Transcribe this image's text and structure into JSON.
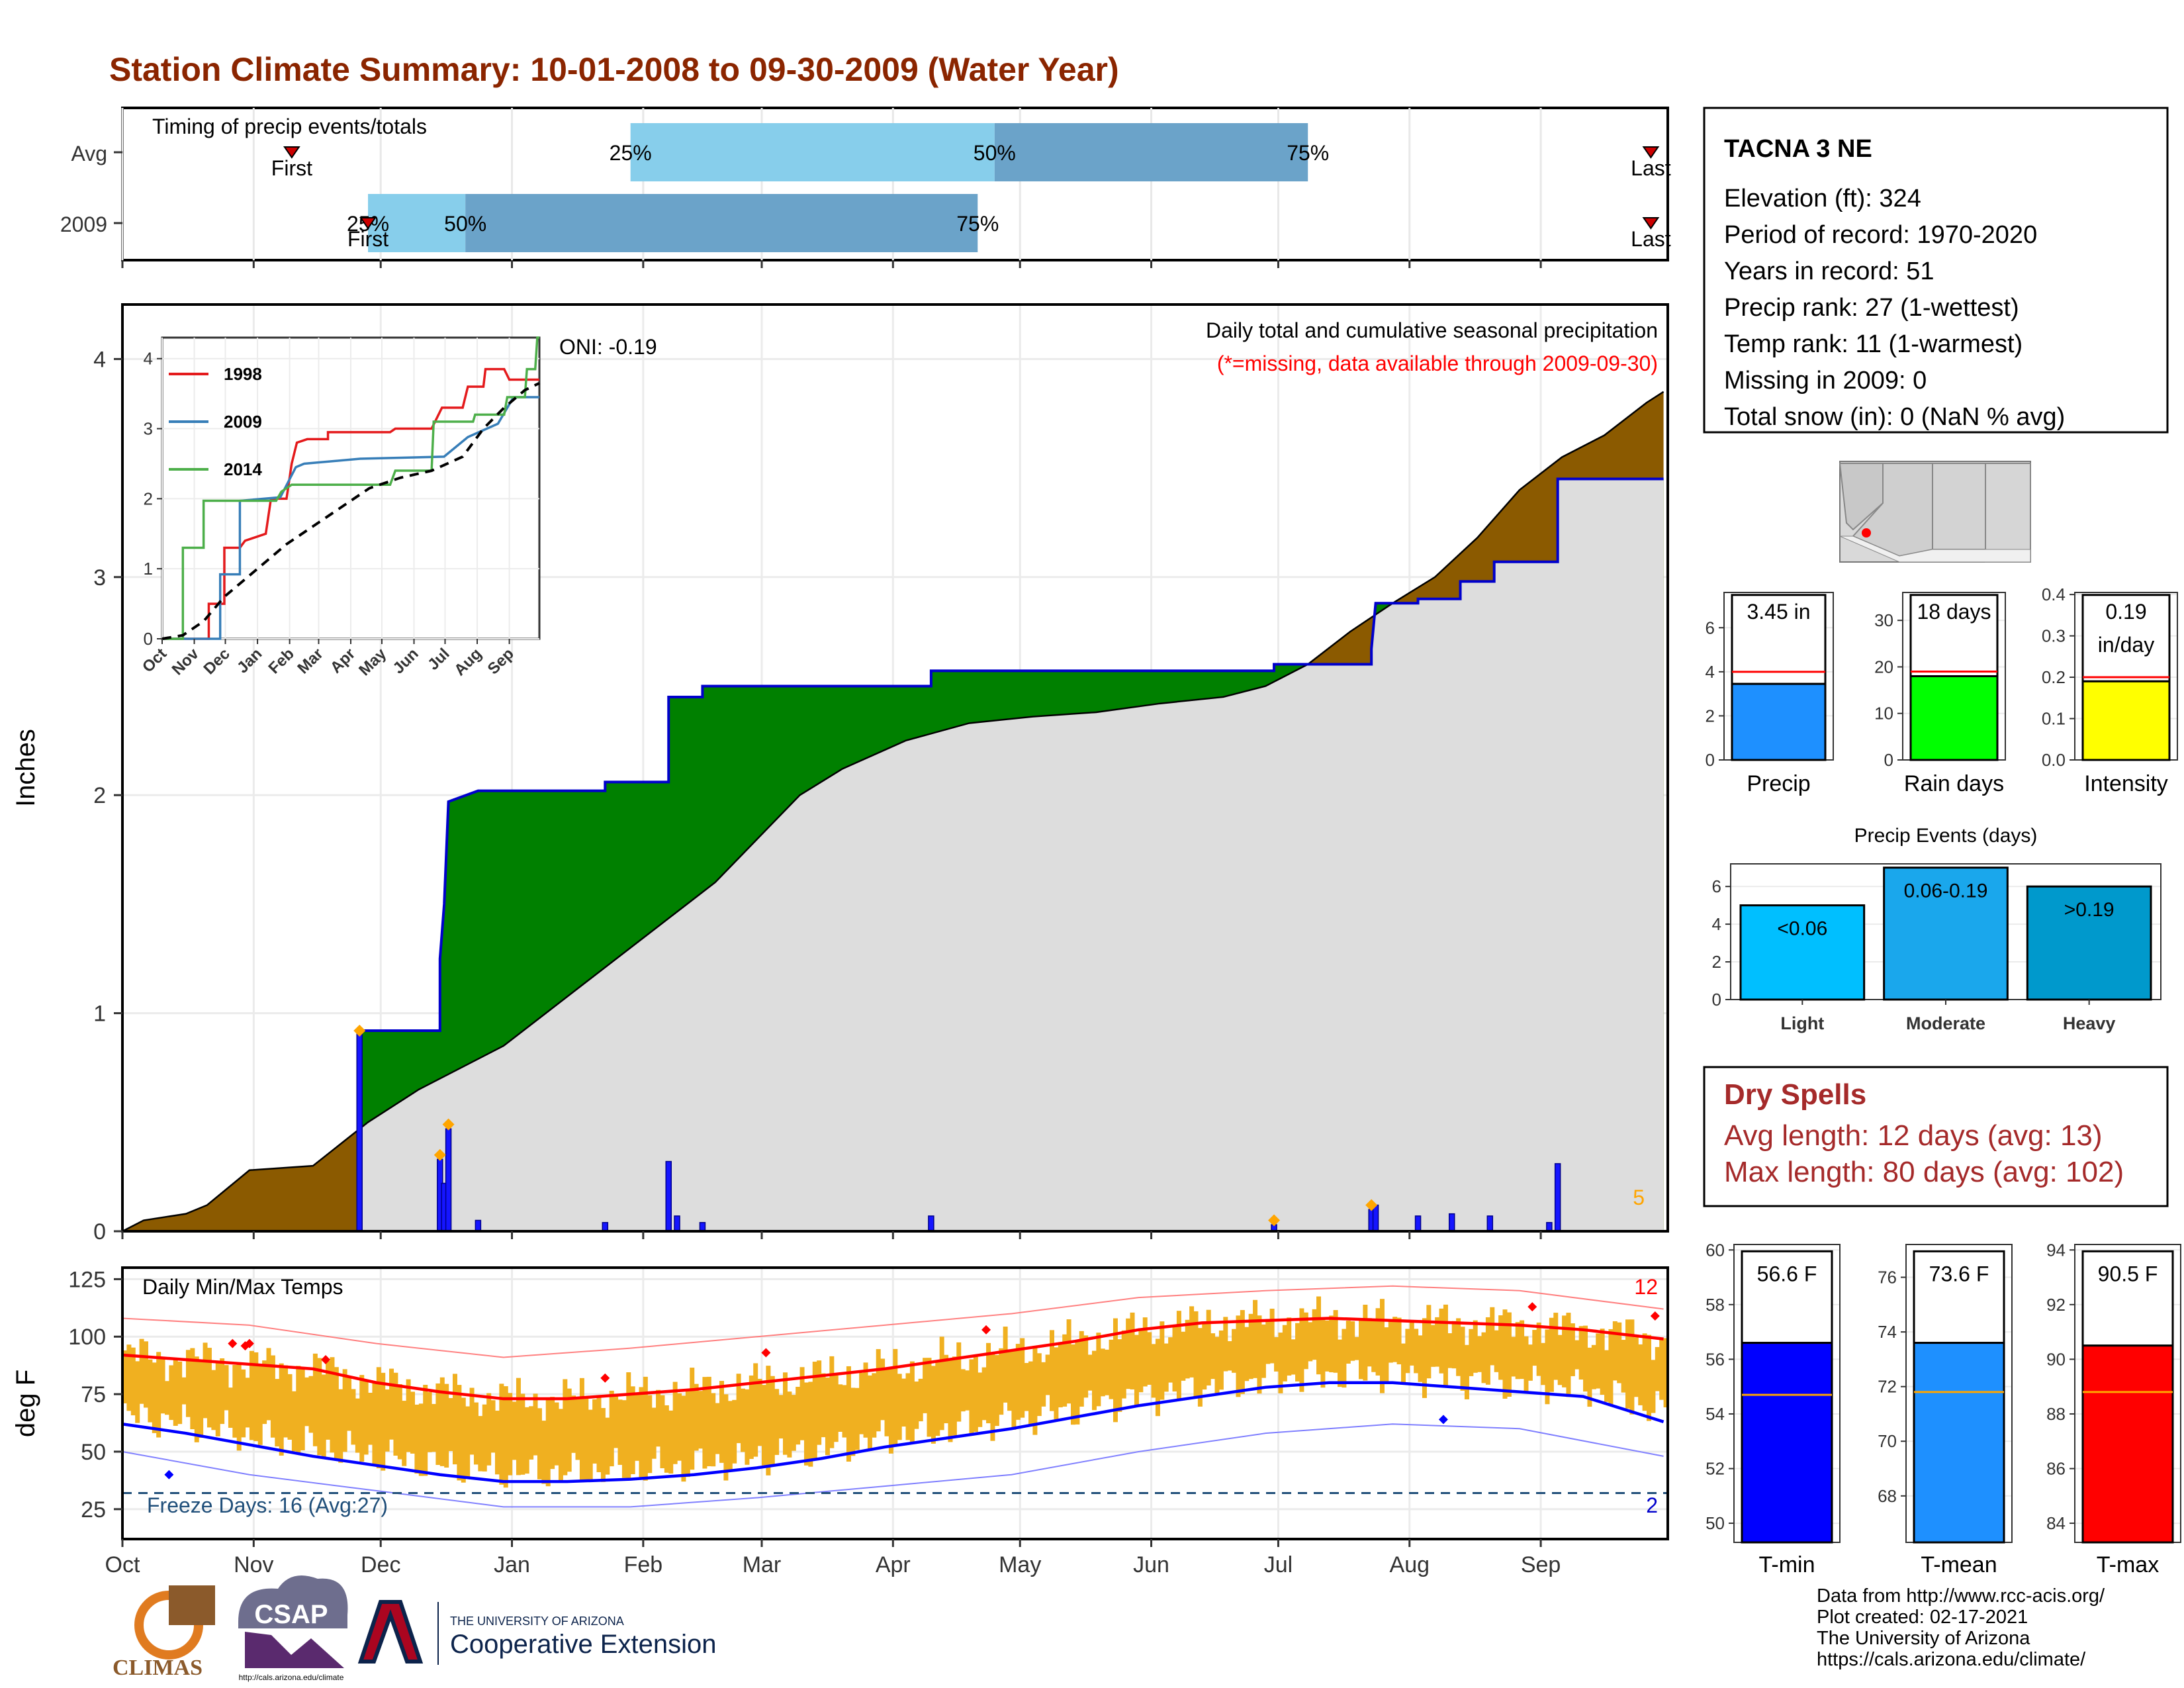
{
  "title": "Station Climate Summary: 10-01-2008 to 09-30-2009 (Water Year)",
  "colors": {
    "title": "#8B2500",
    "light_blue": "#87CEEB",
    "mid_blue": "#6BA3C9",
    "brown": "#8B5A00",
    "green": "#008000",
    "grey_fill": "#DDDDDD",
    "bar_blue": "#1515FF",
    "orange": "#FFA500",
    "red": "#FF0000",
    "temp_band": "#F0B020",
    "dry_red": "#A52A2A"
  },
  "months": [
    "Oct",
    "Nov",
    "Dec",
    "Jan",
    "Feb",
    "Mar",
    "Apr",
    "May",
    "Jun",
    "Jul",
    "Aug",
    "Sep"
  ],
  "timing": {
    "label": "Timing of precip events/totals",
    "rows": [
      "Avg",
      "2009"
    ],
    "first_label": "First",
    "last_label": "Last",
    "p25": "25%",
    "p50": "50%",
    "p75": "75%",
    "avg": {
      "first_day": 40,
      "p25_day": 120,
      "p50_day": 206,
      "p75_day": 280,
      "last_day": 361
    },
    "y2009": {
      "first_day": 58,
      "p25_day": 58,
      "p50_day": 81,
      "p75_day": 202,
      "last_day": 361
    }
  },
  "precip_main": {
    "type": "area",
    "ylabel": "Inches",
    "yticks": [
      0,
      1,
      2,
      3,
      4
    ],
    "ylim": [
      0,
      4.25
    ],
    "header_text": "Daily total and cumulative seasonal precipitation",
    "missing_text": "(*=missing, data available through 2009-09-30)",
    "oni_text": "ONI: -0.19",
    "corner_count": "5",
    "avg_cumulative": [
      [
        0,
        0
      ],
      [
        5,
        0.05
      ],
      [
        15,
        0.08
      ],
      [
        20,
        0.12
      ],
      [
        25,
        0.2
      ],
      [
        30,
        0.28
      ],
      [
        45,
        0.3
      ],
      [
        58,
        0.5
      ],
      [
        70,
        0.65
      ],
      [
        80,
        0.75
      ],
      [
        90,
        0.85
      ],
      [
        100,
        1.0
      ],
      [
        110,
        1.15
      ],
      [
        120,
        1.3
      ],
      [
        130,
        1.45
      ],
      [
        140,
        1.6
      ],
      [
        150,
        1.8
      ],
      [
        160,
        2.0
      ],
      [
        170,
        2.12
      ],
      [
        185,
        2.25
      ],
      [
        200,
        2.33
      ],
      [
        215,
        2.36
      ],
      [
        230,
        2.38
      ],
      [
        245,
        2.42
      ],
      [
        260,
        2.45
      ],
      [
        270,
        2.5
      ],
      [
        280,
        2.6
      ],
      [
        290,
        2.75
      ],
      [
        300,
        2.88
      ],
      [
        310,
        3.0
      ],
      [
        320,
        3.18
      ],
      [
        330,
        3.4
      ],
      [
        340,
        3.55
      ],
      [
        350,
        3.65
      ],
      [
        360,
        3.8
      ],
      [
        364,
        3.85
      ]
    ],
    "y2009_cumulative": [
      [
        0,
        0
      ],
      [
        56,
        0
      ],
      [
        56,
        0.92
      ],
      [
        75,
        0.92
      ],
      [
        75,
        1.25
      ],
      [
        76,
        1.5
      ],
      [
        77,
        1.97
      ],
      [
        84,
        2.02
      ],
      [
        114,
        2.02
      ],
      [
        114,
        2.06
      ],
      [
        129,
        2.06
      ],
      [
        129,
        2.45
      ],
      [
        137,
        2.45
      ],
      [
        137,
        2.5
      ],
      [
        191,
        2.5
      ],
      [
        191,
        2.57
      ],
      [
        272,
        2.57
      ],
      [
        272,
        2.6
      ],
      [
        295,
        2.6
      ],
      [
        295,
        2.67
      ],
      [
        296,
        2.88
      ],
      [
        306,
        2.88
      ],
      [
        306,
        2.9
      ],
      [
        316,
        2.9
      ],
      [
        316,
        2.98
      ],
      [
        324,
        2.98
      ],
      [
        324,
        3.07
      ],
      [
        339,
        3.07
      ],
      [
        339,
        3.45
      ],
      [
        364,
        3.45
      ]
    ],
    "daily_bars": [
      [
        56,
        0.92
      ],
      [
        75,
        0.33
      ],
      [
        76,
        0.22
      ],
      [
        77,
        0.47
      ],
      [
        84,
        0.05
      ],
      [
        114,
        0.04
      ],
      [
        129,
        0.32
      ],
      [
        131,
        0.07
      ],
      [
        137,
        0.04
      ],
      [
        191,
        0.07
      ],
      [
        272,
        0.03
      ],
      [
        295,
        0.1
      ],
      [
        296,
        0.12
      ],
      [
        306,
        0.07
      ],
      [
        314,
        0.08
      ],
      [
        323,
        0.07
      ],
      [
        337,
        0.04
      ],
      [
        339,
        0.31
      ]
    ],
    "markers": [
      [
        56,
        0.92
      ],
      [
        75,
        0.35
      ],
      [
        77,
        0.49
      ],
      [
        272,
        0.05
      ],
      [
        295,
        0.12
      ]
    ]
  },
  "inset": {
    "yticks": [
      0,
      1,
      2,
      3,
      4
    ],
    "ylim": [
      0,
      4.3
    ],
    "legend": [
      {
        "name": "1998",
        "color": "#E41A1C"
      },
      {
        "name": "2009",
        "color": "#377EB8"
      },
      {
        "name": "2014",
        "color": "#4DAF4A"
      }
    ],
    "series_1998": [
      [
        0,
        0
      ],
      [
        45,
        0
      ],
      [
        45,
        0.5
      ],
      [
        60,
        0.5
      ],
      [
        60,
        1.3
      ],
      [
        75,
        1.3
      ],
      [
        80,
        1.4
      ],
      [
        100,
        1.5
      ],
      [
        105,
        2.0
      ],
      [
        120,
        2.0
      ],
      [
        125,
        2.5
      ],
      [
        130,
        2.8
      ],
      [
        140,
        2.85
      ],
      [
        160,
        2.85
      ],
      [
        160,
        2.95
      ],
      [
        220,
        2.95
      ],
      [
        225,
        3.0
      ],
      [
        260,
        3.0
      ],
      [
        270,
        3.3
      ],
      [
        290,
        3.3
      ],
      [
        295,
        3.6
      ],
      [
        310,
        3.6
      ],
      [
        312,
        3.85
      ],
      [
        330,
        3.85
      ],
      [
        335,
        3.7
      ],
      [
        364,
        3.7
      ]
    ],
    "series_2009": [
      [
        0,
        0
      ],
      [
        56,
        0
      ],
      [
        56,
        0.92
      ],
      [
        75,
        0.92
      ],
      [
        75,
        1.97
      ],
      [
        114,
        2.02
      ],
      [
        129,
        2.45
      ],
      [
        137,
        2.5
      ],
      [
        191,
        2.57
      ],
      [
        272,
        2.6
      ],
      [
        295,
        2.88
      ],
      [
        324,
        3.07
      ],
      [
        339,
        3.45
      ],
      [
        364,
        3.45
      ]
    ],
    "series_2014": [
      [
        0,
        0
      ],
      [
        20,
        0
      ],
      [
        20,
        1.3
      ],
      [
        40,
        1.3
      ],
      [
        40,
        1.97
      ],
      [
        110,
        1.97
      ],
      [
        115,
        2.1
      ],
      [
        125,
        2.2
      ],
      [
        220,
        2.2
      ],
      [
        225,
        2.4
      ],
      [
        260,
        2.4
      ],
      [
        262,
        3.1
      ],
      [
        300,
        3.1
      ],
      [
        302,
        3.2
      ],
      [
        330,
        3.2
      ],
      [
        333,
        3.45
      ],
      [
        350,
        3.45
      ],
      [
        352,
        3.85
      ],
      [
        360,
        3.85
      ],
      [
        362,
        4.3
      ],
      [
        364,
        4.3
      ]
    ],
    "avg": [
      [
        0,
        0
      ],
      [
        20,
        0.05
      ],
      [
        40,
        0.25
      ],
      [
        60,
        0.6
      ],
      [
        80,
        0.85
      ],
      [
        100,
        1.1
      ],
      [
        120,
        1.35
      ],
      [
        140,
        1.55
      ],
      [
        160,
        1.75
      ],
      [
        180,
        1.95
      ],
      [
        200,
        2.15
      ],
      [
        230,
        2.3
      ],
      [
        260,
        2.4
      ],
      [
        290,
        2.6
      ],
      [
        310,
        3.0
      ],
      [
        330,
        3.3
      ],
      [
        350,
        3.55
      ],
      [
        364,
        3.65
      ]
    ]
  },
  "temps": {
    "ylabel": "deg F",
    "title": "Daily Min/Max Temps",
    "yticks": [
      25,
      50,
      75,
      100,
      125
    ],
    "ylim": [
      12,
      130
    ],
    "freeze_line": 32,
    "freeze_text": "Freeze Days: 16 (Avg:27)",
    "count_hi": "12",
    "count_lo": "2",
    "avg_max": [
      [
        0,
        92
      ],
      [
        15,
        90
      ],
      [
        30,
        88
      ],
      [
        45,
        86
      ],
      [
        60,
        80
      ],
      [
        75,
        76
      ],
      [
        90,
        73
      ],
      [
        105,
        73
      ],
      [
        120,
        75
      ],
      [
        135,
        77
      ],
      [
        150,
        80
      ],
      [
        165,
        83
      ],
      [
        180,
        86
      ],
      [
        195,
        90
      ],
      [
        210,
        94
      ],
      [
        225,
        98
      ],
      [
        240,
        103
      ],
      [
        255,
        106
      ],
      [
        270,
        107
      ],
      [
        285,
        108
      ],
      [
        300,
        107
      ],
      [
        315,
        106
      ],
      [
        330,
        105
      ],
      [
        345,
        103
      ],
      [
        364,
        99
      ]
    ],
    "avg_min": [
      [
        0,
        62
      ],
      [
        15,
        58
      ],
      [
        30,
        53
      ],
      [
        45,
        48
      ],
      [
        60,
        44
      ],
      [
        75,
        40
      ],
      [
        90,
        37
      ],
      [
        105,
        37
      ],
      [
        120,
        38
      ],
      [
        135,
        40
      ],
      [
        150,
        43
      ],
      [
        165,
        47
      ],
      [
        180,
        52
      ],
      [
        195,
        56
      ],
      [
        210,
        60
      ],
      [
        225,
        65
      ],
      [
        240,
        70
      ],
      [
        255,
        74
      ],
      [
        270,
        78
      ],
      [
        285,
        80
      ],
      [
        300,
        80
      ],
      [
        315,
        78
      ],
      [
        330,
        76
      ],
      [
        345,
        74
      ],
      [
        364,
        63
      ]
    ],
    "rec_max": [
      [
        0,
        108
      ],
      [
        30,
        105
      ],
      [
        60,
        97
      ],
      [
        90,
        91
      ],
      [
        120,
        95
      ],
      [
        150,
        100
      ],
      [
        180,
        105
      ],
      [
        210,
        110
      ],
      [
        240,
        117
      ],
      [
        270,
        120
      ],
      [
        300,
        122
      ],
      [
        330,
        120
      ],
      [
        364,
        112
      ]
    ],
    "rec_min": [
      [
        0,
        50
      ],
      [
        30,
        40
      ],
      [
        60,
        33
      ],
      [
        90,
        26
      ],
      [
        120,
        26
      ],
      [
        150,
        30
      ],
      [
        180,
        35
      ],
      [
        210,
        40
      ],
      [
        240,
        50
      ],
      [
        270,
        58
      ],
      [
        300,
        62
      ],
      [
        330,
        60
      ],
      [
        364,
        48
      ]
    ],
    "hi_markers": [
      [
        26,
        97
      ],
      [
        29,
        96
      ],
      [
        30,
        97
      ],
      [
        48,
        90
      ],
      [
        114,
        82
      ],
      [
        152,
        93
      ],
      [
        204,
        103
      ],
      [
        333,
        113
      ],
      [
        362,
        109
      ]
    ],
    "lo_markers": [
      [
        11,
        40
      ],
      [
        312,
        64
      ]
    ]
  },
  "station": {
    "name": "TACNA 3 NE",
    "lines": [
      "Elevation (ft): 324",
      "Period of record: 1970-2020",
      "Years in record: 51",
      "Precip rank: 27 (1-wettest)",
      "Temp rank: 11 (1-warmest)",
      "Missing in 2009: 0",
      "Total snow (in): 0 (NaN % avg)"
    ]
  },
  "mini_bars": [
    {
      "label": "Precip",
      "value": 3.45,
      "avg": 4.0,
      "text": "3.45 in",
      "text2": "",
      "ymax": 7.6,
      "yticks": [
        0,
        2,
        4,
        6
      ],
      "color": "#1E90FF"
    },
    {
      "label": "Rain days",
      "value": 18,
      "avg": 19,
      "text": "18 days",
      "text2": "",
      "ymax": 36,
      "yticks": [
        0,
        10,
        20,
        30
      ],
      "color": "#00FF00"
    },
    {
      "label": "Intensity",
      "value": 0.19,
      "avg": 0.2,
      "text": "0.19",
      "text2": "in/day",
      "ymax": 0.405,
      "yticks": [
        0.0,
        0.1,
        0.2,
        0.3,
        0.4
      ],
      "color": "#FFFF00"
    }
  ],
  "events": {
    "title": "Precip Events (days)",
    "yticks": [
      0,
      2,
      4,
      6
    ],
    "ymax": 7.2,
    "bars": [
      {
        "cat": "Light",
        "value": 5,
        "text": "<0.06",
        "color": "#00BFFF"
      },
      {
        "cat": "Moderate",
        "value": 7,
        "text": "0.06-0.19",
        "color": "#1AA7EC"
      },
      {
        "cat": "Heavy",
        "value": 6,
        "text": ">0.19",
        "color": "#0099CC"
      }
    ]
  },
  "dry_spells": {
    "title": "Dry Spells",
    "avg_line": "Avg length: 12 days (avg: 13)",
    "max_line": "Max length: 80 days (avg: 102)"
  },
  "temp_bars": [
    {
      "label": "T-min",
      "value": 56.6,
      "avg": 54.7,
      "text": "56.6 F",
      "ylim": [
        49.3,
        60.2
      ],
      "yticks": [
        50,
        52,
        54,
        56,
        58,
        60
      ],
      "color": "#0000FF"
    },
    {
      "label": "T-mean",
      "value": 73.6,
      "avg": 71.8,
      "text": "73.6 F",
      "ylim": [
        66.3,
        77.2
      ],
      "yticks": [
        68,
        70,
        72,
        74,
        76
      ],
      "color": "#1E90FF"
    },
    {
      "label": "T-max",
      "value": 90.5,
      "avg": 88.8,
      "text": "90.5 F",
      "ylim": [
        83.3,
        94.2
      ],
      "yticks": [
        84,
        86,
        88,
        90,
        92,
        94
      ],
      "color": "#FF0000"
    }
  ],
  "footer": [
    "Data from http://www.rcc-acis.org/",
    "Plot created: 02-17-2021",
    "The University of Arizona",
    "https://cals.arizona.edu/climate/"
  ],
  "logos": {
    "climas": "CLIMAS",
    "csap": "CSAP",
    "csap_url": "http://cals.arizona.edu/climate",
    "ua_small": "THE UNIVERSITY OF ARIZONA",
    "ua_big": "Cooperative Extension"
  }
}
